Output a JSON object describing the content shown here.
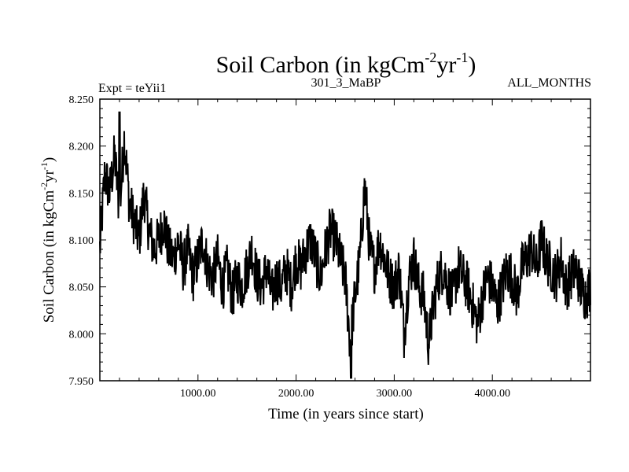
{
  "chart_data": {
    "type": "line",
    "title": "Soil Carbon (in kgCm",
    "title_parts": [
      "Soil Carbon (in kgCm",
      "-2",
      "yr",
      "-1",
      ")"
    ],
    "subtitle_left": "Expt = teYii1",
    "subtitle_center": "301_3_MaBP",
    "subtitle_right": "ALL_MONTHS",
    "xlabel": "Time (in years since start)",
    "ylabel_parts": [
      "Soil Carbon (in kgCm",
      "-2",
      "yr",
      "-1",
      ")"
    ],
    "xlim": [
      0,
      5000
    ],
    "ylim": [
      7.95,
      8.25
    ],
    "x_ticks": [
      1000,
      2000,
      3000,
      4000
    ],
    "x_tick_labels": [
      "1000.00",
      "2000.00",
      "3000.00",
      "4000.00"
    ],
    "y_ticks": [
      7.95,
      8.0,
      8.05,
      8.1,
      8.15,
      8.2,
      8.25
    ],
    "y_tick_labels": [
      "7.950",
      "8.000",
      "8.050",
      "8.100",
      "8.150",
      "8.200",
      "8.250"
    ],
    "series": [
      {
        "name": "Soil Carbon",
        "color": "#000000",
        "x": [
          0,
          50,
          100,
          150,
          200,
          250,
          300,
          350,
          400,
          450,
          500,
          550,
          600,
          650,
          700,
          750,
          800,
          850,
          900,
          950,
          1000,
          1050,
          1100,
          1150,
          1200,
          1250,
          1300,
          1350,
          1400,
          1450,
          1500,
          1550,
          1600,
          1650,
          1700,
          1750,
          1800,
          1850,
          1900,
          1950,
          2000,
          2050,
          2100,
          2150,
          2200,
          2250,
          2300,
          2350,
          2400,
          2450,
          2500,
          2550,
          2600,
          2650,
          2700,
          2750,
          2800,
          2850,
          2900,
          2950,
          3000,
          3050,
          3100,
          3150,
          3200,
          3250,
          3300,
          3350,
          3400,
          3450,
          3500,
          3550,
          3600,
          3650,
          3700,
          3750,
          3800,
          3850,
          3900,
          3950,
          4000,
          4050,
          4100,
          4150,
          4200,
          4250,
          4300,
          4350,
          4400,
          4450,
          4500,
          4550,
          4600,
          4650,
          4700,
          4750,
          4800,
          4850,
          4900,
          4950,
          5000
        ],
        "values": [
          8.09,
          8.17,
          8.15,
          8.19,
          8.13,
          8.21,
          8.14,
          8.12,
          8.1,
          8.15,
          8.11,
          8.09,
          8.1,
          8.12,
          8.09,
          8.08,
          8.1,
          8.07,
          8.09,
          8.06,
          8.08,
          8.1,
          8.07,
          8.06,
          8.08,
          8.05,
          8.07,
          8.04,
          8.06,
          8.05,
          8.07,
          8.09,
          8.06,
          8.05,
          8.07,
          8.04,
          8.06,
          8.05,
          8.07,
          8.05,
          8.08,
          8.07,
          8.09,
          8.1,
          8.08,
          8.06,
          8.09,
          8.11,
          8.1,
          8.08,
          8.06,
          7.99,
          8.04,
          8.08,
          8.16,
          8.09,
          8.07,
          8.1,
          8.08,
          8.06,
          8.05,
          8.07,
          8.0,
          8.06,
          8.08,
          8.05,
          8.04,
          7.99,
          8.03,
          8.06,
          8.07,
          8.05,
          8.04,
          8.07,
          8.06,
          8.05,
          8.03,
          8.01,
          8.04,
          8.06,
          8.05,
          8.03,
          8.05,
          8.07,
          8.06,
          8.04,
          8.07,
          8.08,
          8.09,
          8.07,
          8.1,
          8.08,
          8.07,
          8.06,
          8.08,
          8.05,
          8.06,
          8.07,
          8.05,
          8.04,
          8.05
        ],
        "extremes": {
          "max_label": "8.236 near year 200",
          "min_label": "7.953 near year 2560"
        }
      }
    ]
  }
}
